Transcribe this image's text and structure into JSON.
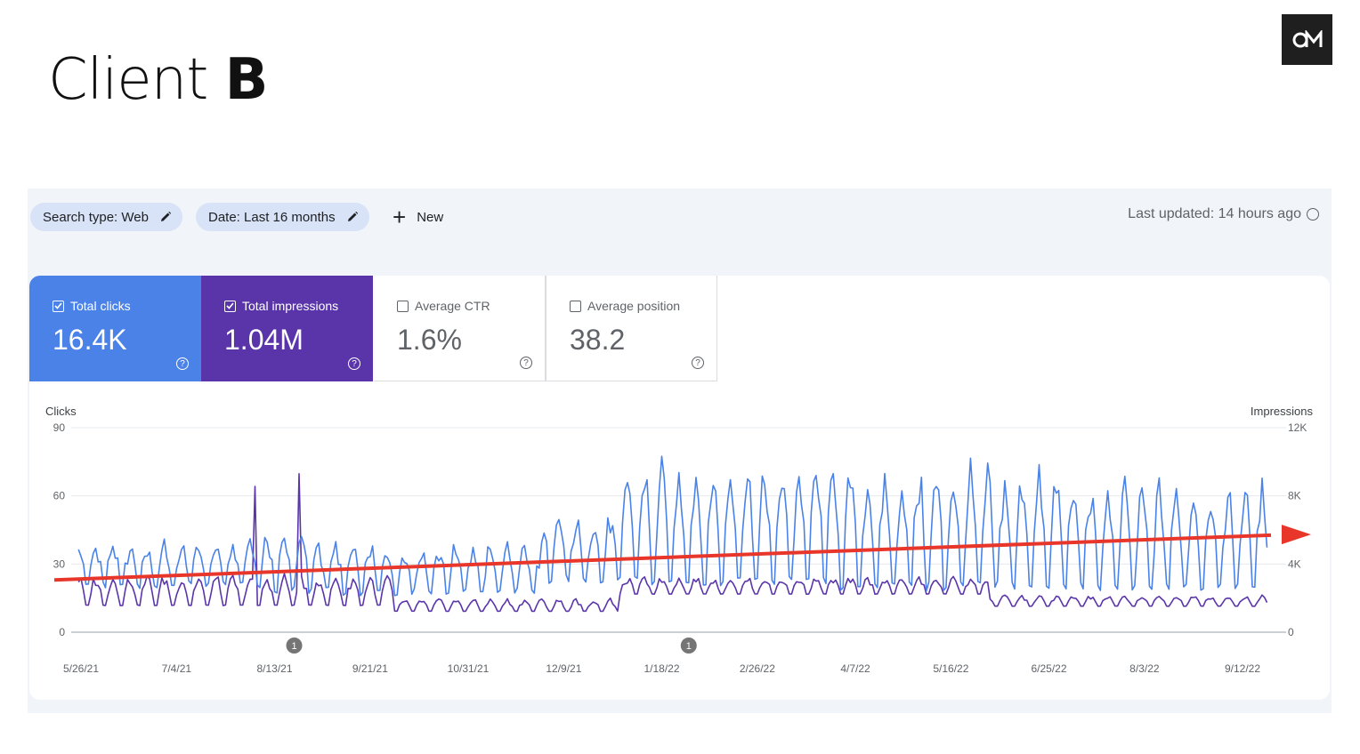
{
  "slide": {
    "title_prefix": "Client ",
    "title_bold": "B",
    "logo_icon": "om-logo-icon"
  },
  "filters": {
    "search_type": "Search type: Web",
    "date": "Date: Last 16 months",
    "new_label": "New",
    "last_updated": "Last updated: 14 hours ago"
  },
  "metrics": {
    "clicks": {
      "label": "Total clicks",
      "value": "16.4K",
      "checked": true,
      "color": "#4a82e8"
    },
    "impressions": {
      "label": "Total impressions",
      "value": "1.04M",
      "checked": true,
      "color": "#5a35aa"
    },
    "ctr": {
      "label": "Average CTR",
      "value": "1.6%",
      "checked": false
    },
    "position": {
      "label": "Average position",
      "value": "38.2",
      "checked": false
    }
  },
  "chart_data": {
    "type": "line",
    "ylabel_left": "Clicks",
    "ylabel_right": "Impressions",
    "y_left_ticks": [
      "90",
      "60",
      "30",
      "0"
    ],
    "y_right_ticks": [
      "12K",
      "8K",
      "4K",
      "0"
    ],
    "ylim_left": [
      0,
      90
    ],
    "ylim_right": [
      0,
      12000
    ],
    "x_ticks": [
      "5/26/21",
      "7/4/21",
      "8/13/21",
      "9/21/21",
      "10/31/21",
      "12/9/21",
      "1/18/22",
      "2/26/22",
      "4/7/22",
      "5/16/22",
      "6/25/22",
      "8/3/22",
      "9/12/22"
    ],
    "annotations": [
      {
        "date": "8/21/21",
        "label": "1"
      },
      {
        "date": "1/29/22",
        "label": "1"
      }
    ],
    "trend_arrow": {
      "color": "#e8372a",
      "from_clicks": 23,
      "to_clicks": 43
    },
    "series": [
      {
        "name": "Clicks",
        "axis": "left",
        "color": "#4a82e8",
        "weekly_pattern": [
          {
            "period": "May–Jul 2021",
            "low": 20,
            "high": 40
          },
          {
            "period": "Aug 2021",
            "low": 18,
            "high": 45
          },
          {
            "period": "Sep–Nov 2021",
            "low": 17,
            "high": 40
          },
          {
            "period": "Dec 2021",
            "low": 22,
            "high": 53
          },
          {
            "period": "Jan–Mar 2022",
            "low": 20,
            "high": 77
          },
          {
            "period": "Apr–Jun 2022",
            "low": 18,
            "high": 75
          },
          {
            "period": "Jul–Sep 2022",
            "low": 18,
            "high": 68
          }
        ]
      },
      {
        "name": "Impressions",
        "axis": "right",
        "color": "#5a35aa",
        "weekly_pattern": [
          {
            "period": "May–Sep 2021",
            "low": 1500,
            "high": 3500
          },
          {
            "period": "Aug 2021 peaks",
            "low": 1500,
            "high": 9300
          },
          {
            "period": "Oct–Dec 2021",
            "low": 1200,
            "high": 2000
          },
          {
            "period": "Jan–May 2022",
            "low": 2200,
            "high": 3300
          },
          {
            "period": "Jun–Sep 2022",
            "low": 1500,
            "high": 2200
          }
        ]
      }
    ]
  }
}
